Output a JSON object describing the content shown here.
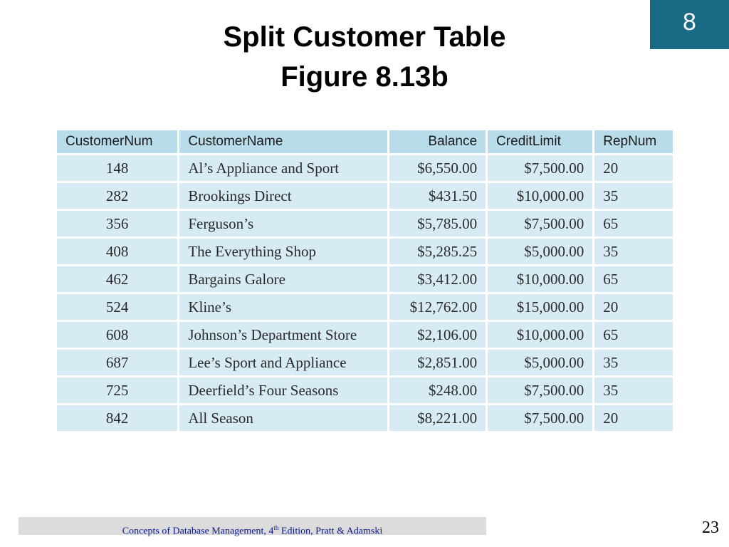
{
  "chapter_badge": "8",
  "title": {
    "line1": "Split Customer Table",
    "line2": "Figure 8.13b"
  },
  "table": {
    "columns": [
      "CustomerNum",
      "CustomerName",
      "Balance",
      "CreditLimit",
      "RepNum"
    ],
    "rows": [
      [
        "148",
        "Al’s Appliance and Sport",
        "$6,550.00",
        "$7,500.00",
        "20"
      ],
      [
        "282",
        "Brookings Direct",
        "$431.50",
        "$10,000.00",
        "35"
      ],
      [
        "356",
        "Ferguson’s",
        "$5,785.00",
        "$7,500.00",
        "65"
      ],
      [
        "408",
        "The Everything Shop",
        "$5,285.25",
        "$5,000.00",
        "35"
      ],
      [
        "462",
        "Bargains Galore",
        "$3,412.00",
        "$10,000.00",
        "65"
      ],
      [
        "524",
        "Kline’s",
        "$12,762.00",
        "$15,000.00",
        "20"
      ],
      [
        "608",
        "Johnson’s Department Store",
        "$2,106.00",
        "$10,000.00",
        "65"
      ],
      [
        "687",
        "Lee’s Sport and Appliance",
        "$2,851.00",
        "$5,000.00",
        "35"
      ],
      [
        "725",
        "Deerfield’s Four Seasons",
        "$248.00",
        "$7,500.00",
        "35"
      ],
      [
        "842",
        "All Season",
        "$8,221.00",
        "$7,500.00",
        "20"
      ]
    ]
  },
  "footer": {
    "text_before": "Concepts of Database Management, 4",
    "superscript": "th",
    "text_after": " Edition, Pratt & Adamski"
  },
  "page_number": "23"
}
